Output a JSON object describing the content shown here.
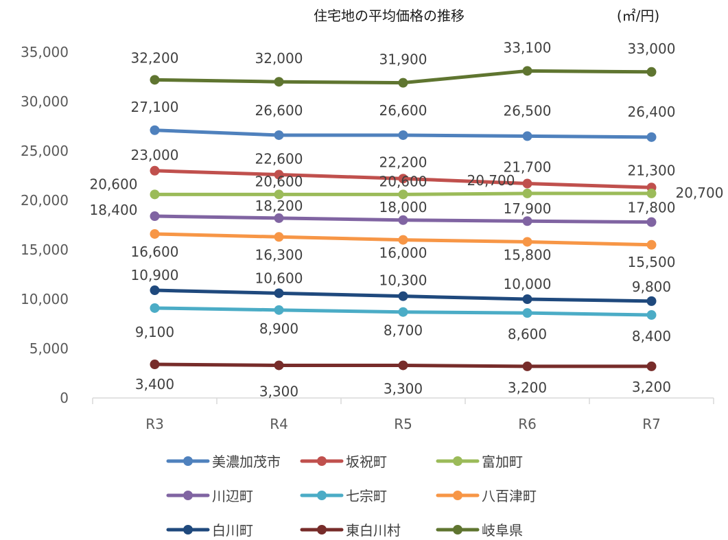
{
  "chart_data": {
    "type": "line",
    "title": "住宅地の平均価格の推移",
    "unit": "(㎡/円)",
    "xlabel": "",
    "ylabel": "",
    "categories": [
      "R3",
      "R4",
      "R5",
      "R6",
      "R7"
    ],
    "ylim": [
      0,
      35000
    ],
    "yticks": [
      "0",
      "5,000",
      "10,000",
      "15,000",
      "20,000",
      "25,000",
      "30,000",
      "35,000"
    ],
    "grid": false,
    "legend_position": "bottom",
    "series": [
      {
        "name": "美濃加茂市",
        "color": "#4f81bd",
        "values": [
          27100,
          26600,
          26600,
          26500,
          26400
        ],
        "labels": [
          "27,100",
          "26,600",
          "26,600",
          "26,500",
          "26,400"
        ]
      },
      {
        "name": "坂祝町",
        "color": "#c0504d",
        "values": [
          23000,
          22600,
          22200,
          21700,
          21300
        ],
        "labels": [
          "23,000",
          "22,600",
          "22,200",
          "21,700",
          "21,300"
        ]
      },
      {
        "name": "富加町",
        "color": "#9bbb59",
        "values": [
          20600,
          20600,
          20600,
          20700,
          20700
        ],
        "labels": [
          "20,600",
          "20,600",
          "20,600",
          "20,700",
          "20,700"
        ]
      },
      {
        "name": "川辺町",
        "color": "#8064a2",
        "values": [
          18400,
          18200,
          18000,
          17900,
          17800
        ],
        "labels": [
          "18,400",
          "18,200",
          "18,000",
          "17,900",
          "17,800"
        ]
      },
      {
        "name": "七宗町",
        "color": "#4bacc6",
        "values": [
          9100,
          8900,
          8700,
          8600,
          8400
        ],
        "labels": [
          "9,100",
          "8,900",
          "8,700",
          "8,600",
          "8,400"
        ]
      },
      {
        "name": "八百津町",
        "color": "#f79646",
        "values": [
          16600,
          16300,
          16000,
          15800,
          15500
        ],
        "labels": [
          "16,600",
          "16,300",
          "16,000",
          "15,800",
          "15,500"
        ]
      },
      {
        "name": "白川町",
        "color": "#1f497d",
        "values": [
          10900,
          10600,
          10300,
          10000,
          9800
        ],
        "labels": [
          "10,900",
          "10,600",
          "10,300",
          "10,000",
          "9,800"
        ]
      },
      {
        "name": "東白川村",
        "color": "#772c2a",
        "values": [
          3400,
          3300,
          3300,
          3200,
          3200
        ],
        "labels": [
          "3,400",
          "3,300",
          "3,300",
          "3,200",
          "3,200"
        ]
      },
      {
        "name": "岐阜県",
        "color": "#5f7530",
        "values": [
          32200,
          32000,
          31900,
          33100,
          33000
        ],
        "labels": [
          "32,200",
          "32,000",
          "31,900",
          "33,100",
          "33,000"
        ]
      }
    ]
  }
}
